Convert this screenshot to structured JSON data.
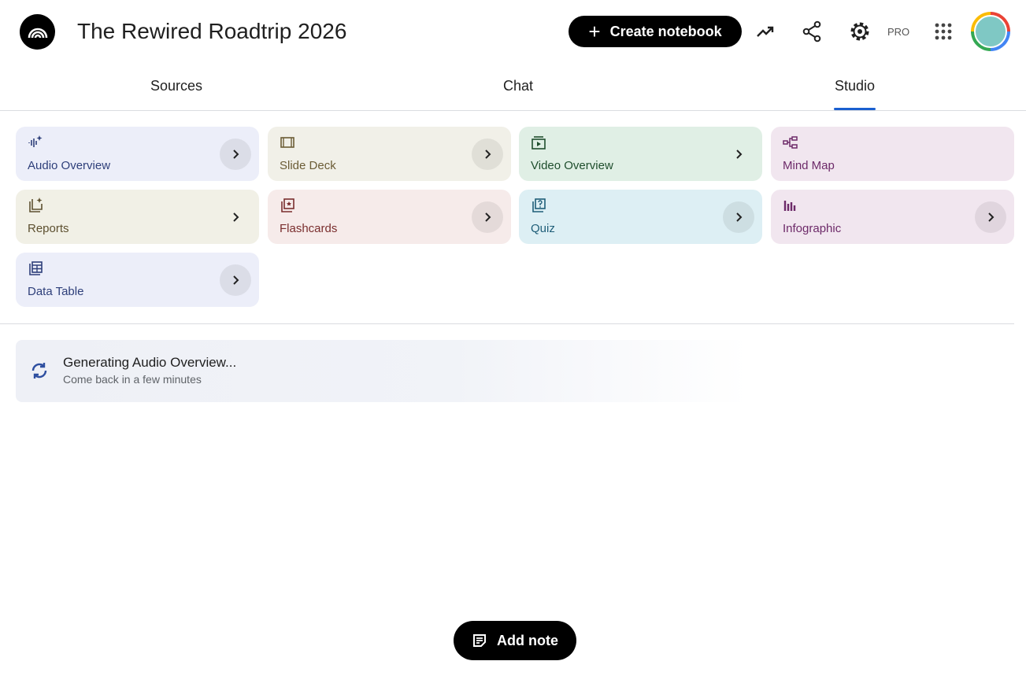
{
  "header": {
    "title": "The Rewired Roadtrip 2026",
    "create_label": "Create notebook",
    "pro_label": "PRO"
  },
  "tabs": [
    {
      "label": "Sources"
    },
    {
      "label": "Chat"
    },
    {
      "label": "Studio",
      "active": true
    }
  ],
  "studio": {
    "cards": [
      {
        "label": "Audio Overview",
        "icon": "audio-waveform-sparkle",
        "bg": "#eceef9",
        "fg": "#2e3f7a"
      },
      {
        "label": "Slide Deck",
        "icon": "slides",
        "bg": "#f1f0e8",
        "fg": "#6b5c35"
      },
      {
        "label": "Video Overview",
        "icon": "video-play",
        "bg": "#e0efe5",
        "fg": "#1f4e2d"
      },
      {
        "label": "Mind Map",
        "icon": "mind-map",
        "bg": "#f1e6ef",
        "fg": "#6d2a69"
      },
      {
        "label": "Reports",
        "icon": "reports-sparkle",
        "bg": "#f1f0e6",
        "fg": "#5d5030"
      },
      {
        "label": "Flashcards",
        "icon": "flashcards",
        "bg": "#f6ebea",
        "fg": "#7a2e2e"
      },
      {
        "label": "Quiz",
        "icon": "quiz",
        "bg": "#ddeff4",
        "fg": "#1f5e78"
      },
      {
        "label": "Infographic",
        "icon": "bar-chart",
        "bg": "#f1e6ef",
        "fg": "#6d2a69"
      },
      {
        "label": "Data Table",
        "icon": "table",
        "bg": "#eceef9",
        "fg": "#2e3f7a"
      }
    ],
    "generating": {
      "title": "Generating Audio Overview...",
      "subtitle": "Come back in a few minutes"
    }
  },
  "add_note_label": "Add note"
}
